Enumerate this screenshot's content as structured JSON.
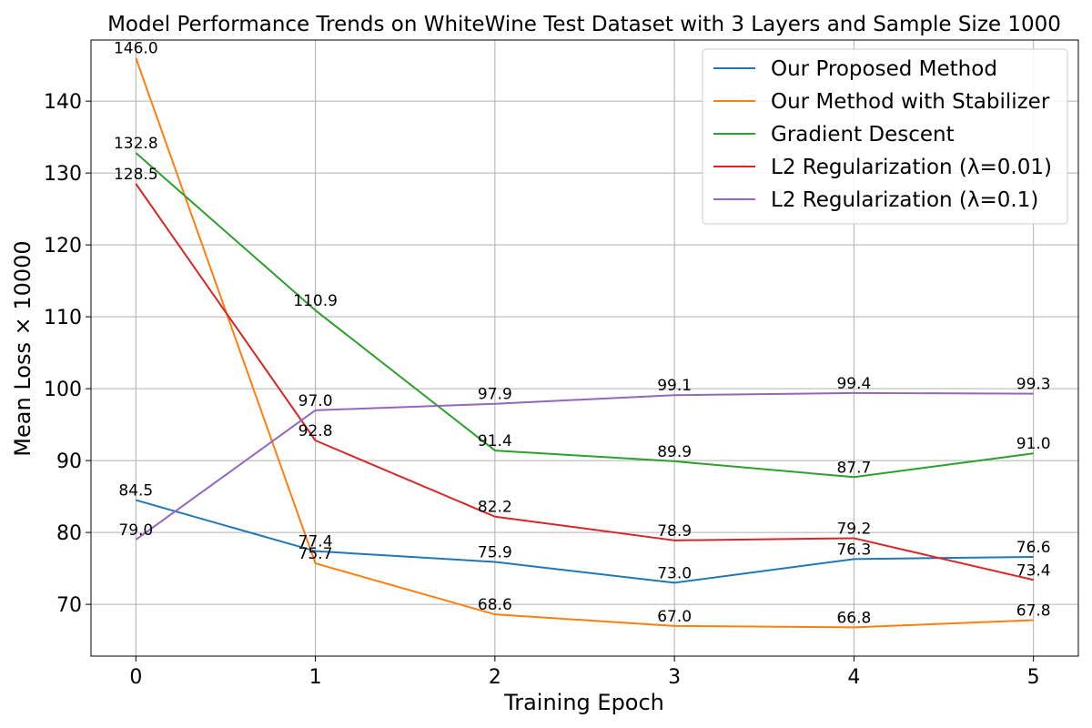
{
  "chart_data": {
    "type": "line",
    "title": "Model Performance Trends on WhiteWine Test Dataset with 3 Layers and Sample Size 1000",
    "xlabel": "Training Epoch",
    "ylabel": "Mean Loss × 10000",
    "x": [
      0,
      1,
      2,
      3,
      4,
      5
    ],
    "xticks": [
      "0",
      "1",
      "2",
      "3",
      "4",
      "5"
    ],
    "yticks": [
      "70",
      "80",
      "90",
      "100",
      "110",
      "120",
      "130",
      "140"
    ],
    "ylim": [
      62.8,
      148.5
    ],
    "xlim": [
      -0.25,
      5.25
    ],
    "grid": true,
    "legend_position": "top-right",
    "series": [
      {
        "name": "Our Proposed Method",
        "color": "#1f77b4",
        "values": [
          84.5,
          77.4,
          75.9,
          73.0,
          76.3,
          76.6
        ],
        "labels": [
          "84.5",
          "77.4",
          "75.9",
          "73.0",
          "76.3",
          "76.6"
        ]
      },
      {
        "name": "Our Method with Stabilizer",
        "color": "#ff7f0e",
        "values": [
          146.0,
          75.7,
          68.6,
          67.0,
          66.8,
          67.8
        ],
        "labels": [
          "146.0",
          "75.7",
          "68.6",
          "67.0",
          "66.8",
          "67.8"
        ]
      },
      {
        "name": "Gradient Descent",
        "color": "#2ca02c",
        "values": [
          132.8,
          110.9,
          91.4,
          89.9,
          87.7,
          91.0
        ],
        "labels": [
          "132.8",
          "110.9",
          "91.4",
          "89.9",
          "87.7",
          "91.0"
        ]
      },
      {
        "name": "L2 Regularization (λ=0.01)",
        "color": "#d62728",
        "values": [
          128.5,
          92.8,
          82.2,
          78.9,
          79.2,
          73.4
        ],
        "labels": [
          "128.5",
          "92.8",
          "82.2",
          "78.9",
          "79.2",
          "73.4"
        ]
      },
      {
        "name": "L2 Regularization (λ=0.1)",
        "color": "#9467bd",
        "values": [
          79.0,
          97.0,
          97.9,
          99.1,
          99.4,
          99.3
        ],
        "labels": [
          "79.0",
          "97.0",
          "97.9",
          "99.1",
          "99.4",
          "99.3"
        ]
      }
    ]
  }
}
